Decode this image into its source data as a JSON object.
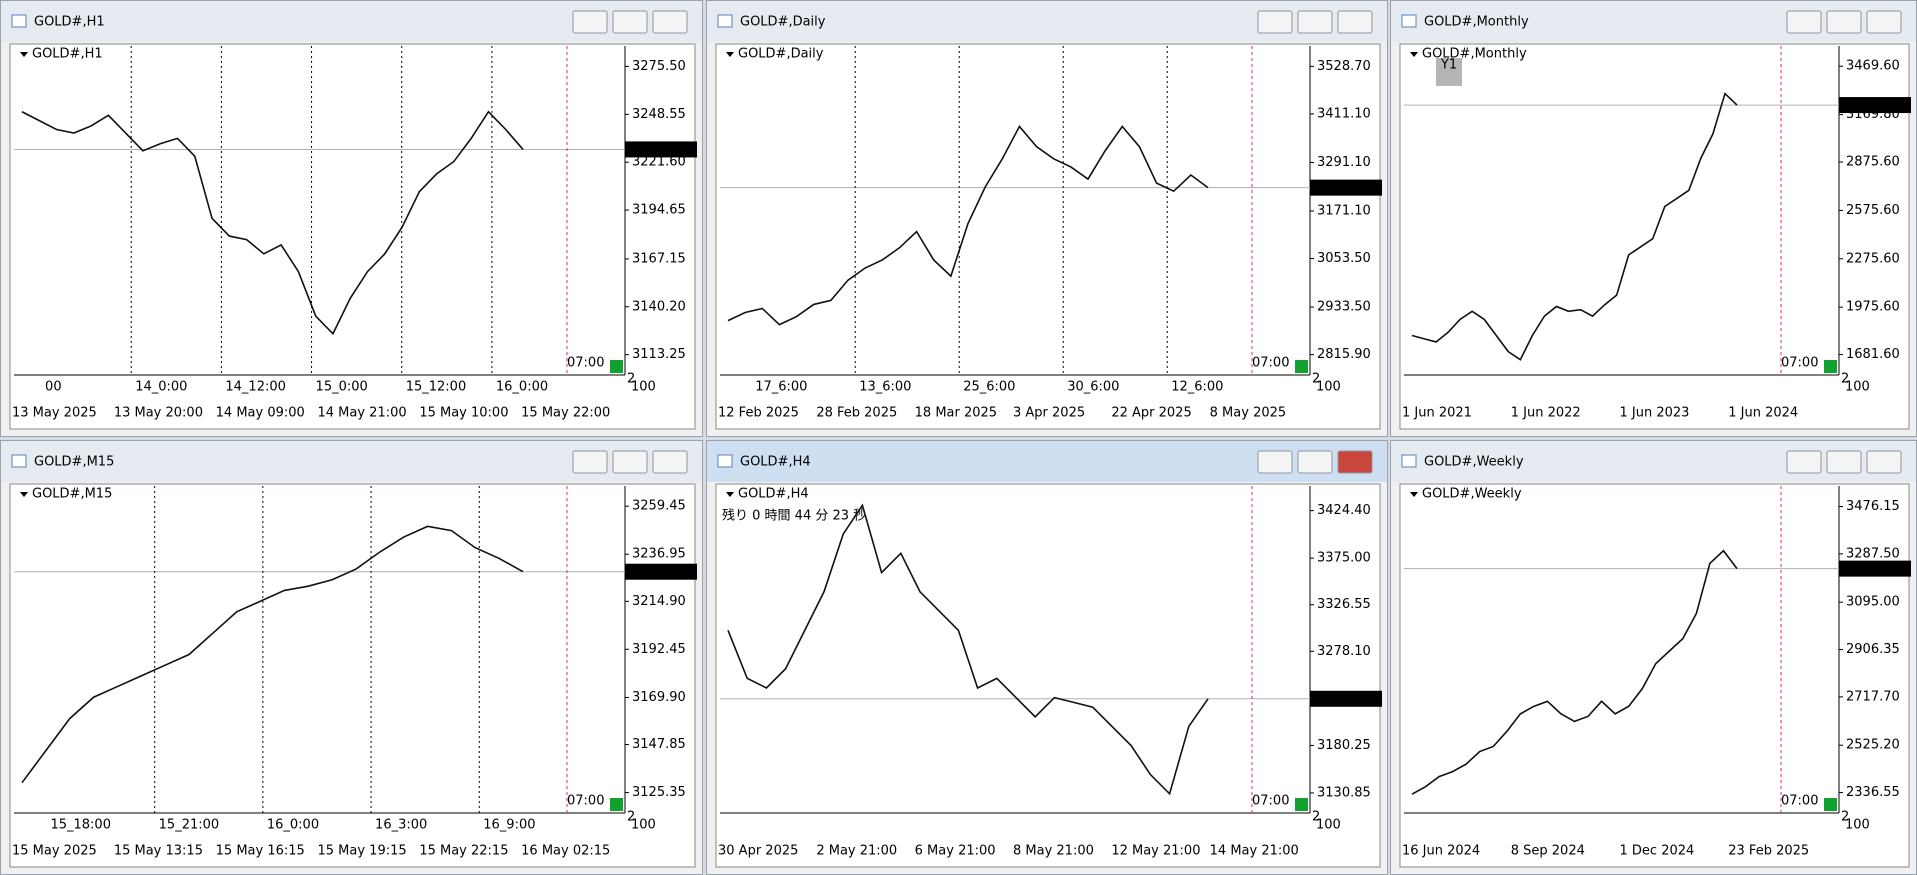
{
  "windows": [
    {
      "title": "GOLD#,H1",
      "yticks": [
        {
          "value": 3275.5,
          "label": "3275.50"
        },
        3248.55,
        {
          "value": 3221.6,
          "label": "3221.60"
        },
        3194.65,
        3167.15,
        {
          "value": 3140.2,
          "label": "3140.20"
        },
        3113.25
      ],
      "ylim": [
        3101.8,
        3287
      ],
      "current": 3228.77,
      "time_labels": [
        "13 May 2025",
        "13 May 20:00",
        "14 May 09:00",
        "14 May 21:00",
        "15 May 10:00",
        "15 May 22:00"
      ],
      "sub_labels": [
        "00",
        "14_0:00",
        "14_12:00",
        "15_0:00",
        "15_12:00",
        "16_0:00"
      ],
      "time_marker": "07:00",
      "corner": [
        "2",
        "100"
      ],
      "closes": [
        3250,
        3245,
        3240,
        3238,
        3242,
        3248,
        3238,
        3228,
        3232,
        3235,
        3225,
        3190,
        3180,
        3178,
        3170,
        3175,
        3160,
        3135,
        3125,
        3145,
        3160,
        3170,
        3185,
        3205,
        3215,
        3222,
        3235,
        3250,
        3240,
        3228.77
      ]
    },
    {
      "title": "GOLD#,Daily",
      "yticks": [
        {
          "value": 3528.7,
          "label": "3528.70"
        },
        {
          "value": 3411.1,
          "label": "3411.10"
        },
        {
          "value": 3291.1,
          "label": "3291.10"
        },
        {
          "value": 3171.1,
          "label": "3171.10"
        },
        {
          "value": 3053.5,
          "label": "3053.50"
        },
        {
          "value": 2933.5,
          "label": "2933.50"
        },
        {
          "value": 2815.9,
          "label": "2815.90"
        }
      ],
      "ylim": [
        2765.5,
        3579
      ],
      "current": 3228.77,
      "time_labels": [
        "12 Feb 2025",
        "28 Feb 2025",
        "18 Mar 2025",
        "3 Apr 2025",
        "22 Apr 2025",
        "8 May 2025"
      ],
      "sub_labels": [
        "17_6:00",
        "13_6:00",
        "25_6:00",
        "30_6:00",
        "12_6:00"
      ],
      "time_marker": "07:00",
      "corner": [
        "2",
        "100"
      ],
      "closes": [
        2900,
        2920,
        2930,
        2890,
        2910,
        2940,
        2950,
        3000,
        3030,
        3050,
        3080,
        3120,
        3050,
        3010,
        3140,
        3230,
        3300,
        3380,
        3330,
        3300,
        3280,
        3250,
        3320,
        3380,
        3330,
        3240,
        3220,
        3260,
        3228.77
      ]
    },
    {
      "title": "GOLD#,Monthly",
      "badge": "Y1",
      "yticks": [
        {
          "value": 3469.6,
          "label": "3469.60"
        },
        {
          "value": 3169.8,
          "label": "3169.80"
        },
        {
          "value": 2875.6,
          "label": "2875.60"
        },
        {
          "value": 2575.6,
          "label": "2575.60"
        },
        {
          "value": 2275.6,
          "label": "2275.60"
        },
        {
          "value": 1975.6,
          "label": "1975.60"
        },
        {
          "value": 1681.6,
          "label": "1681.60"
        }
      ],
      "ylim": [
        1555,
        3595
      ],
      "current": 3228.77,
      "time_labels": [
        "1 Jun 2021",
        "1 Jun 2022",
        "1 Jun 2023",
        "1 Jun 2024"
      ],
      "sub_labels": [],
      "time_marker": "07:00",
      "corner": [
        "2",
        "100"
      ],
      "closes": [
        1800,
        1780,
        1760,
        1820,
        1900,
        1950,
        1900,
        1800,
        1700,
        1650,
        1800,
        1920,
        1980,
        1950,
        1960,
        1920,
        1990,
        2050,
        2300,
        2350,
        2400,
        2600,
        2650,
        2700,
        2900,
        3050,
        3300,
        3228.77
      ]
    },
    {
      "title": "GOLD#,M15",
      "yticks": [
        3259.45,
        3236.95,
        {
          "value": 3214.9,
          "label": "3214.90"
        },
        3192.45,
        {
          "value": 3169.9,
          "label": "3169.90"
        },
        3147.85,
        3125.35
      ],
      "ylim": [
        3115.8,
        3268.9
      ],
      "current": 3228.77,
      "time_labels": [
        "15 May 2025",
        "15 May 13:15",
        "15 May 16:15",
        "15 May 19:15",
        "15 May 22:15",
        "16 May 02:15"
      ],
      "sub_labels": [
        "15_18:00",
        "15_21:00",
        "16_0:00",
        "16_3:00",
        "16_9:00"
      ],
      "time_marker": "07:00",
      "corner": [
        "2",
        "100"
      ],
      "closes": [
        3130,
        3145,
        3160,
        3170,
        3175,
        3180,
        3185,
        3190,
        3200,
        3210,
        3215,
        3220,
        3222,
        3225,
        3230,
        3238,
        3245,
        3250,
        3248,
        3240,
        3235,
        3228.77
      ]
    },
    {
      "title": "GOLD#,H4",
      "subtitle": "残り 0 時間 44 分 23 秒",
      "yticks": [
        {
          "value": 3424.4,
          "label": "3424.40"
        },
        {
          "value": 3375,
          "label": "3375.00"
        },
        3326.55,
        {
          "value": 3278.1,
          "label": "3278.10"
        },
        3180.25,
        3130.85
      ],
      "ylim": [
        3110,
        3450
      ],
      "current": 3228.77,
      "time_labels": [
        "30 Apr 2025",
        "2 May 21:00",
        "6 May 21:00",
        "8 May 21:00",
        "12 May 21:00",
        "14 May 21:00"
      ],
      "sub_labels": [],
      "time_marker": "07:00",
      "corner": [
        "2",
        "100"
      ],
      "closes": [
        3300,
        3250,
        3240,
        3260,
        3300,
        3340,
        3400,
        3430,
        3360,
        3380,
        3340,
        3320,
        3300,
        3240,
        3250,
        3230,
        3210,
        3230,
        3225,
        3220,
        3200,
        3180,
        3150,
        3130,
        3200,
        3228.77
      ]
    },
    {
      "title": "GOLD#,Weekly",
      "yticks": [
        3476.15,
        {
          "value": 3287.5,
          "label": "3287.50"
        },
        {
          "value": 3095,
          "label": "3095.00"
        },
        2906.35,
        {
          "value": 2717.7,
          "label": "2717.70"
        },
        {
          "value": 2525.2,
          "label": "2525.20"
        },
        2336.55
      ],
      "ylim": [
        2255,
        3558
      ],
      "current": 3228.77,
      "time_labels": [
        "16 Jun 2024",
        "8 Sep 2024",
        "1 Dec 2024",
        "23 Feb 2025"
      ],
      "sub_labels": [],
      "time_marker": "07:00",
      "corner": [
        "2",
        "100"
      ],
      "closes": [
        2330,
        2360,
        2400,
        2420,
        2450,
        2500,
        2520,
        2580,
        2650,
        2680,
        2700,
        2650,
        2620,
        2640,
        2700,
        2650,
        2680,
        2750,
        2850,
        2900,
        2950,
        3050,
        3250,
        3300,
        3228.77
      ]
    }
  ]
}
